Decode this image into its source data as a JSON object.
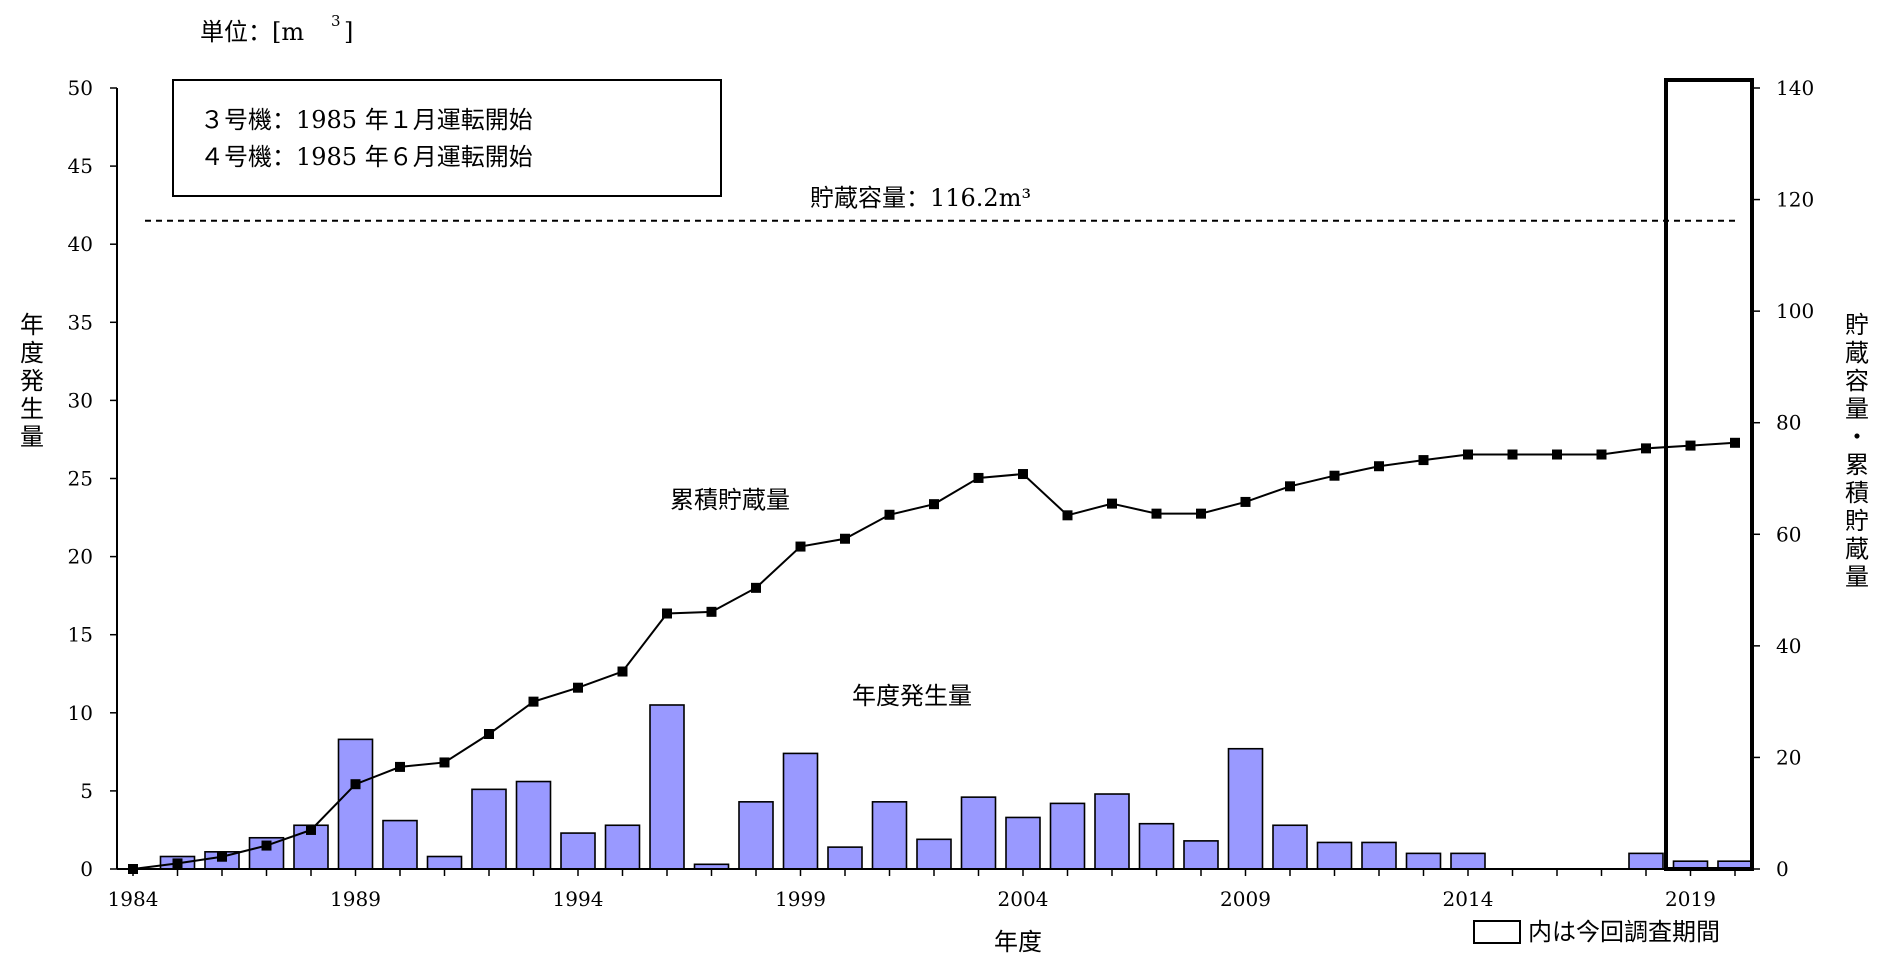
{
  "chart_data": {
    "type": "bar",
    "unit_label": "単位：[m",
    "unit_superscript": "3",
    "unit_close": "]",
    "xlabel": "年度",
    "ylabel_left": "年度発生量",
    "ylabel_right": "貯蔵容量・累積貯蔵量",
    "left_ylim": [
      0,
      50
    ],
    "left_yticks": [
      0,
      5,
      10,
      15,
      20,
      25,
      30,
      35,
      40,
      45,
      50
    ],
    "right_ylim": [
      0,
      140
    ],
    "right_yticks": [
      0,
      20,
      40,
      60,
      80,
      100,
      120,
      140
    ],
    "x_tick_labels": [
      "1984",
      "1989",
      "1994",
      "1999",
      "2004",
      "2009",
      "2014",
      "2019"
    ],
    "years": [
      1984,
      1985,
      1986,
      1987,
      1988,
      1989,
      1990,
      1991,
      1992,
      1993,
      1994,
      1995,
      1996,
      1997,
      1998,
      1999,
      2000,
      2001,
      2002,
      2003,
      2004,
      2005,
      2006,
      2007,
      2008,
      2009,
      2010,
      2011,
      2012,
      2013,
      2014,
      2015,
      2016,
      2017,
      2018,
      2019,
      2020
    ],
    "series": [
      {
        "name": "年度発生量",
        "axis": "left",
        "style": "bar",
        "color": "#9999ff",
        "values": [
          0,
          0.8,
          1.1,
          2.0,
          2.8,
          8.3,
          3.1,
          0.8,
          5.1,
          5.6,
          2.3,
          2.8,
          10.5,
          0.3,
          4.3,
          7.4,
          1.4,
          4.3,
          1.9,
          4.6,
          3.3,
          4.2,
          4.8,
          2.9,
          1.8,
          7.7,
          2.8,
          1.7,
          1.7,
          1.0,
          1.0,
          0,
          0,
          0,
          1.0,
          0.5,
          0.5
        ]
      },
      {
        "name": "累積貯蔵量",
        "axis": "right",
        "style": "line",
        "color": "#000000",
        "values": [
          0,
          1.0,
          2.2,
          4.2,
          7.0,
          15.2,
          18.3,
          19.1,
          24.2,
          30.0,
          32.5,
          35.4,
          45.8,
          46.1,
          50.4,
          57.8,
          59.2,
          63.5,
          65.4,
          70.1,
          70.8,
          63.4,
          65.5,
          63.7,
          63.7,
          65.8,
          68.6,
          70.5,
          72.2,
          73.3,
          74.3,
          74.3,
          74.3,
          74.3,
          75.4,
          75.9,
          76.4
        ]
      }
    ],
    "reference_line": {
      "label": "貯蔵容量：116.2m³",
      "value": 116.2,
      "axis": "right"
    },
    "annotations": {
      "info_line1": "３号機：1985 年１月運転開始",
      "info_line2": "４号機：1985 年６月運転開始",
      "cumulative_label": "累積貯蔵量",
      "annual_label": "年度発生量"
    },
    "highlight": {
      "years": [
        2019,
        2020
      ],
      "legend_text": "内は今回調査期間"
    }
  }
}
